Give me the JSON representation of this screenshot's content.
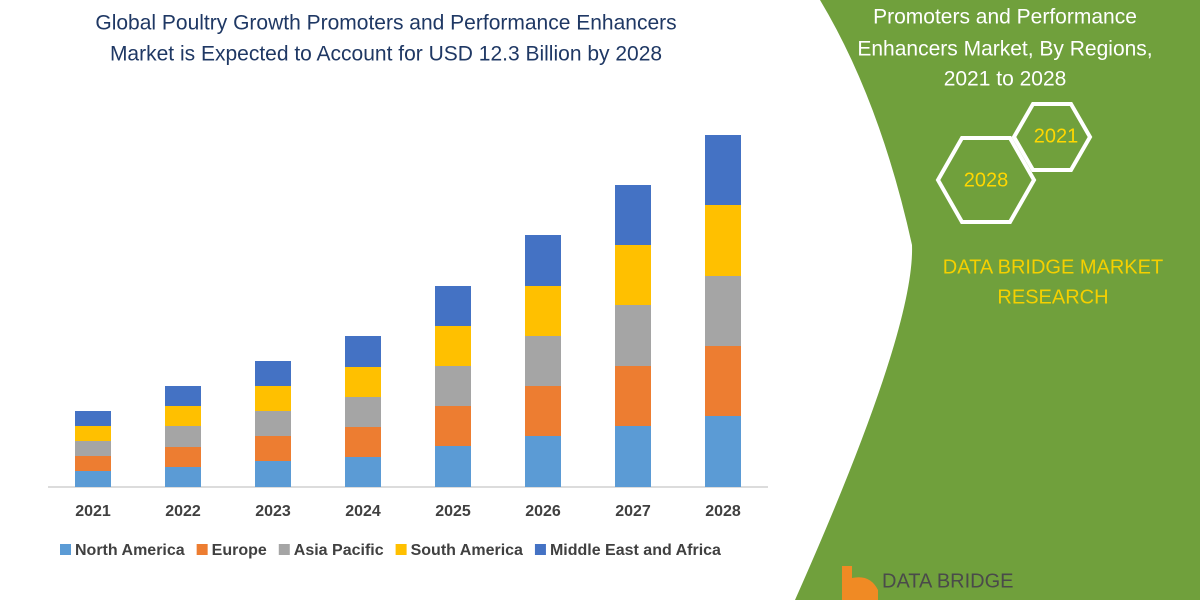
{
  "chart_data": {
    "type": "bar",
    "stacked": true,
    "title": [
      "Global Poultry Growth Promoters and Performance Enhancers",
      "Market is Expected to Account for USD 12.3 Billion by 2028"
    ],
    "categories": [
      "2021",
      "2022",
      "2023",
      "2024",
      "2025",
      "2026",
      "2027",
      "2028"
    ],
    "series": [
      {
        "name": "North America",
        "color": "#5b9bd5",
        "values": [
          16,
          20,
          26,
          30,
          41,
          51,
          61,
          71
        ]
      },
      {
        "name": "Europe",
        "color": "#ed7d31",
        "values": [
          15,
          20,
          25,
          30,
          40,
          50,
          60,
          70
        ]
      },
      {
        "name": "Asia Pacific",
        "color": "#a5a5a5",
        "values": [
          15,
          21,
          25,
          30,
          40,
          50,
          61,
          70
        ]
      },
      {
        "name": "South America",
        "color": "#ffc000",
        "values": [
          15,
          20,
          25,
          30,
          40,
          50,
          60,
          71
        ]
      },
      {
        "name": "Middle East and Africa",
        "color": "#4472c4",
        "values": [
          15,
          20,
          25,
          31,
          40,
          51,
          60,
          70
        ]
      }
    ]
  },
  "panel": {
    "title_lines": [
      "Promoters and Performance",
      "Enhancers Market, By Regions,",
      "2021 to 2028"
    ],
    "hex_labels": [
      "2021",
      "2028"
    ],
    "brand": [
      "DATA BRIDGE MARKET",
      "RESEARCH"
    ],
    "logo": "DATA BRIDGE"
  }
}
